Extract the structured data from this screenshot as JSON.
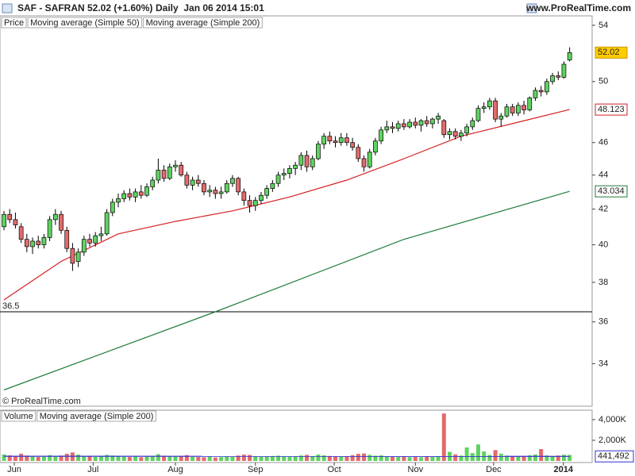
{
  "chart_data": [
    {
      "type": "candlestick",
      "title": "SAF - SAFRAN",
      "subtitle": "52.02 (+1.60%)",
      "period": "Daily  Jan 06 2014 15:01",
      "source": "www.ProRealTime.com",
      "watermark": "© ProRealTime.com",
      "name": "Price",
      "up_color": "#5fd35f",
      "down_color": "#e36b6b",
      "log_scale": true,
      "ylim": [
        32.08,
        54.7
      ],
      "yticks": [
        34,
        36,
        38,
        40,
        42,
        44,
        46,
        50,
        54
      ],
      "xlim": [
        -0.7,
        102.8
      ],
      "xticks": [
        {
          "value": 1.8,
          "label": "Jun"
        },
        {
          "value": 15.6,
          "label": "Jul"
        },
        {
          "value": 30,
          "label": "Aug"
        },
        {
          "value": 44,
          "label": "Sep"
        },
        {
          "value": 57.8,
          "label": "Oct"
        },
        {
          "value": 72,
          "label": "Nov"
        },
        {
          "value": 85.7,
          "label": "Dec"
        },
        {
          "value": 97.9,
          "label": "2014"
        }
      ],
      "hline": 36.5,
      "ohlc": [
        [
          41.0,
          41.9,
          40.8,
          41.7
        ],
        [
          41.7,
          42.0,
          41.2,
          41.4
        ],
        [
          41.4,
          41.8,
          40.9,
          41.1
        ],
        [
          41.0,
          41.2,
          40.1,
          40.3
        ],
        [
          40.3,
          40.6,
          39.6,
          39.9
        ],
        [
          39.9,
          40.4,
          39.5,
          40.2
        ],
        [
          40.2,
          40.5,
          39.8,
          40.0
        ],
        [
          40.0,
          40.6,
          39.8,
          40.4
        ],
        [
          40.4,
          41.6,
          40.2,
          41.4
        ],
        [
          41.4,
          42.0,
          41.1,
          41.7
        ],
        [
          41.7,
          41.9,
          40.6,
          40.8
        ],
        [
          40.8,
          41.0,
          39.6,
          39.8
        ],
        [
          39.8,
          40.1,
          38.6,
          39.0
        ],
        [
          39.1,
          39.8,
          38.8,
          39.6
        ],
        [
          39.6,
          40.5,
          39.4,
          40.3
        ],
        [
          40.3,
          40.6,
          39.9,
          40.1
        ],
        [
          40.1,
          40.7,
          39.9,
          40.5
        ],
        [
          40.5,
          41.0,
          40.2,
          40.6
        ],
        [
          40.6,
          42.0,
          40.5,
          41.8
        ],
        [
          41.8,
          42.6,
          41.6,
          42.4
        ],
        [
          42.4,
          42.9,
          42.1,
          42.6
        ],
        [
          42.6,
          43.1,
          42.4,
          42.9
        ],
        [
          42.9,
          43.2,
          42.5,
          42.7
        ],
        [
          42.7,
          43.2,
          42.4,
          43.0
        ],
        [
          43.0,
          43.4,
          42.6,
          42.8
        ],
        [
          42.8,
          43.5,
          42.7,
          43.3
        ],
        [
          43.3,
          43.9,
          43.1,
          43.7
        ],
        [
          43.7,
          45.0,
          43.5,
          44.3
        ],
        [
          44.3,
          44.6,
          43.6,
          43.8
        ],
        [
          43.8,
          44.7,
          43.7,
          44.5
        ],
        [
          44.5,
          44.9,
          44.2,
          44.6
        ],
        [
          44.6,
          44.8,
          43.9,
          44.0
        ],
        [
          44.0,
          44.2,
          43.2,
          43.4
        ],
        [
          43.4,
          43.9,
          43.1,
          43.7
        ],
        [
          43.7,
          44.0,
          43.3,
          43.5
        ],
        [
          43.5,
          43.7,
          42.8,
          43.0
        ],
        [
          43.0,
          43.4,
          42.7,
          43.1
        ],
        [
          43.1,
          43.3,
          42.6,
          42.9
        ],
        [
          42.9,
          43.3,
          42.6,
          43.0
        ],
        [
          43.0,
          43.7,
          42.9,
          43.5
        ],
        [
          43.5,
          44.0,
          43.3,
          43.8
        ],
        [
          43.8,
          43.9,
          42.8,
          43.0
        ],
        [
          43.0,
          43.2,
          42.2,
          42.5
        ],
        [
          42.5,
          42.8,
          41.8,
          42.2
        ],
        [
          42.2,
          42.7,
          41.9,
          42.5
        ],
        [
          42.5,
          43.0,
          42.3,
          42.8
        ],
        [
          42.8,
          43.4,
          42.6,
          43.2
        ],
        [
          43.2,
          43.7,
          43.0,
          43.5
        ],
        [
          43.5,
          44.2,
          43.3,
          44.0
        ],
        [
          44.0,
          44.4,
          43.7,
          44.1
        ],
        [
          44.1,
          44.6,
          43.8,
          44.4
        ],
        [
          44.4,
          44.8,
          44.0,
          44.6
        ],
        [
          44.6,
          45.4,
          44.3,
          45.2
        ],
        [
          45.2,
          45.5,
          44.2,
          44.5
        ],
        [
          44.5,
          45.2,
          44.3,
          45.0
        ],
        [
          45.0,
          46.1,
          44.9,
          45.9
        ],
        [
          45.9,
          46.6,
          45.6,
          46.4
        ],
        [
          46.4,
          46.7,
          45.9,
          46.1
        ],
        [
          46.1,
          46.4,
          45.7,
          46.0
        ],
        [
          46.0,
          46.6,
          45.8,
          46.3
        ],
        [
          46.3,
          46.6,
          45.8,
          46.0
        ],
        [
          46.0,
          46.3,
          45.5,
          45.7
        ],
        [
          45.7,
          45.9,
          44.8,
          45.0
        ],
        [
          45.0,
          45.2,
          44.2,
          44.5
        ],
        [
          44.5,
          45.6,
          44.4,
          45.4
        ],
        [
          45.4,
          46.3,
          45.2,
          46.1
        ],
        [
          46.1,
          47.0,
          45.9,
          46.8
        ],
        [
          46.8,
          47.4,
          46.6,
          47.0
        ],
        [
          47.0,
          47.3,
          46.6,
          46.9
        ],
        [
          46.9,
          47.4,
          46.7,
          47.2
        ],
        [
          47.2,
          47.5,
          46.8,
          47.0
        ],
        [
          47.0,
          47.5,
          46.9,
          47.3
        ],
        [
          47.3,
          47.6,
          46.9,
          47.1
        ],
        [
          47.1,
          47.5,
          46.7,
          47.4
        ],
        [
          47.4,
          47.7,
          47.0,
          47.2
        ],
        [
          47.2,
          47.6,
          46.9,
          47.5
        ],
        [
          47.5,
          47.9,
          47.2,
          47.7
        ],
        [
          47.4,
          47.5,
          46.3,
          46.5
        ],
        [
          46.5,
          46.9,
          46.2,
          46.7
        ],
        [
          46.7,
          46.9,
          46.2,
          46.4
        ],
        [
          46.4,
          46.8,
          46.1,
          46.6
        ],
        [
          46.6,
          47.2,
          46.4,
          47.0
        ],
        [
          47.0,
          47.6,
          46.8,
          47.4
        ],
        [
          47.4,
          48.4,
          47.3,
          48.2
        ],
        [
          48.2,
          48.6,
          47.9,
          48.3
        ],
        [
          48.3,
          48.9,
          48.1,
          48.7
        ],
        [
          48.7,
          48.9,
          47.3,
          47.5
        ],
        [
          47.5,
          47.9,
          47.0,
          47.7
        ],
        [
          47.7,
          48.5,
          47.6,
          48.3
        ],
        [
          48.3,
          48.5,
          47.7,
          47.9
        ],
        [
          47.9,
          48.6,
          47.7,
          48.4
        ],
        [
          48.4,
          48.7,
          47.8,
          48.1
        ],
        [
          48.1,
          49.0,
          48.0,
          48.9
        ],
        [
          48.9,
          49.6,
          48.7,
          49.4
        ],
        [
          49.4,
          49.7,
          49.0,
          49.3
        ],
        [
          49.3,
          50.2,
          49.1,
          50.0
        ],
        [
          50.0,
          50.6,
          49.8,
          50.4
        ],
        [
          50.4,
          50.7,
          50.1,
          50.3
        ],
        [
          50.3,
          51.4,
          50.2,
          51.2
        ],
        [
          51.5,
          52.4,
          51.4,
          52.02
        ]
      ],
      "series": [
        {
          "name": "Moving average (Simple 50)",
          "color": "#d42020",
          "x": [
            0,
            10,
            20,
            30,
            40,
            50,
            60,
            70,
            80,
            90,
            99
          ],
          "values": [
            37.1,
            39.1,
            40.6,
            41.3,
            41.9,
            42.7,
            43.7,
            45.0,
            46.4,
            47.3,
            48.123
          ]
        },
        {
          "name": "Moving average (Simple 200)",
          "color": "#1e7a3a",
          "x": [
            0,
            37,
            70,
            99
          ],
          "values": [
            32.8,
            36.5,
            40.3,
            43.034
          ]
        }
      ]
    },
    {
      "type": "bar",
      "name": "Volume",
      "ylim": [
        0,
        4920000
      ],
      "yticks": [
        {
          "value": 2000000,
          "label": "2,000K"
        },
        {
          "value": 4000000,
          "label": "4,000K"
        }
      ],
      "values": [
        620000,
        540000,
        480000,
        700000,
        520000,
        450000,
        380000,
        410000,
        560000,
        480000,
        520000,
        690000,
        820000,
        610000,
        470000,
        430000,
        390000,
        450000,
        580000,
        520000,
        470000,
        410000,
        380000,
        440000,
        360000,
        420000,
        480000,
        650000,
        510000,
        460000,
        420000,
        490000,
        560000,
        400000,
        380000,
        350000,
        420000,
        330000,
        370000,
        410000,
        390000,
        520000,
        610000,
        580000,
        450000,
        400000,
        430000,
        480000,
        510000,
        440000,
        400000,
        460000,
        530000,
        590000,
        470000,
        620000,
        540000,
        480000,
        430000,
        410000,
        450000,
        560000,
        680000,
        720000,
        590000,
        510000,
        540000,
        460000,
        400000,
        380000,
        420000,
        360000,
        390000,
        350000,
        410000,
        380000,
        450000,
        4600000,
        880000,
        640000,
        520000,
        1300000,
        760000,
        1600000,
        920000,
        580000,
        1050000,
        700000,
        510000,
        460000,
        430000,
        490000,
        550000,
        620000,
        1150000,
        530000,
        480000,
        520000,
        600000,
        580000
      ],
      "series": [
        {
          "name": "Moving average (Simple 200)",
          "color": "#3030d0",
          "x": [
            0,
            99
          ],
          "values": [
            455000,
            441492
          ],
          "value_labels": [
            null,
            "441,492"
          ]
        }
      ]
    }
  ]
}
